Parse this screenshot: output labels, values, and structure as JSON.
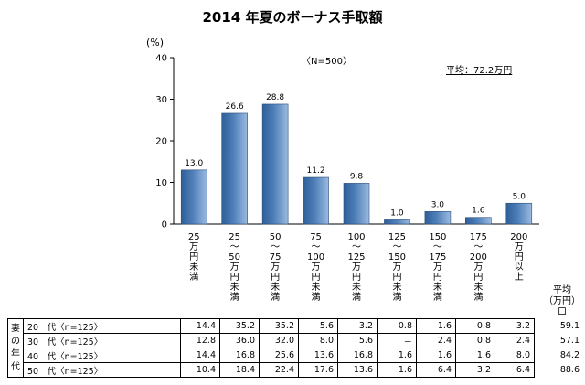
{
  "chart_data": {
    "type": "bar",
    "title": "2014 年夏のボーナス手取額",
    "ylabel": "(%)",
    "ylim": [
      0,
      40
    ],
    "yticks": [
      0,
      10,
      20,
      30,
      40
    ],
    "n_label": "〈N=500〉",
    "average_label": "平均：72.2万円",
    "categories": [
      "25\n万\n円\n未\n満",
      "25\n～\n50\n万\n円\n未\n満",
      "50\n～\n75\n万\n円\n未\n満",
      "75\n～\n100\n万\n円\n未\n満",
      "100\n～\n125\n万\n円\n未\n満",
      "125\n～\n150\n万\n円\n未\n満",
      "150\n～\n175\n万\n円\n未\n満",
      "175\n～\n200\n万\n円\n未\n満",
      "200\n万\n円\n以\n上"
    ],
    "values": [
      13.0,
      26.6,
      28.8,
      11.2,
      9.8,
      1.0,
      3.0,
      1.6,
      5.0
    ],
    "value_labels": [
      "13.0",
      "26.6",
      "28.8",
      "11.2",
      "9.8",
      "1.0",
      "3.0",
      "1.6",
      "5.0"
    ],
    "bar_color": "#4f7fb8"
  },
  "breakdown": {
    "group_label": "妻\nの\n年\n代",
    "average_header": "平均\n（万円）\n口",
    "rows": [
      {
        "label": "20　代〈n=125〉",
        "values": [
          "14.4",
          "35.2",
          "35.2",
          "5.6",
          "3.2",
          "0.8",
          "1.6",
          "0.8",
          "3.2"
        ],
        "average": "59.1"
      },
      {
        "label": "30　代〈n=125〉",
        "values": [
          "12.8",
          "36.0",
          "32.0",
          "8.0",
          "5.6",
          "－",
          "2.4",
          "0.8",
          "2.4"
        ],
        "average": "57.1"
      },
      {
        "label": "40　代〈n=125〉",
        "values": [
          "14.4",
          "16.8",
          "25.6",
          "13.6",
          "16.8",
          "1.6",
          "1.6",
          "1.6",
          "8.0"
        ],
        "average": "84.2"
      },
      {
        "label": "50　代〈n=125〉",
        "values": [
          "10.4",
          "18.4",
          "22.4",
          "17.6",
          "13.6",
          "1.6",
          "6.4",
          "3.2",
          "6.4"
        ],
        "average": "88.6"
      }
    ]
  }
}
